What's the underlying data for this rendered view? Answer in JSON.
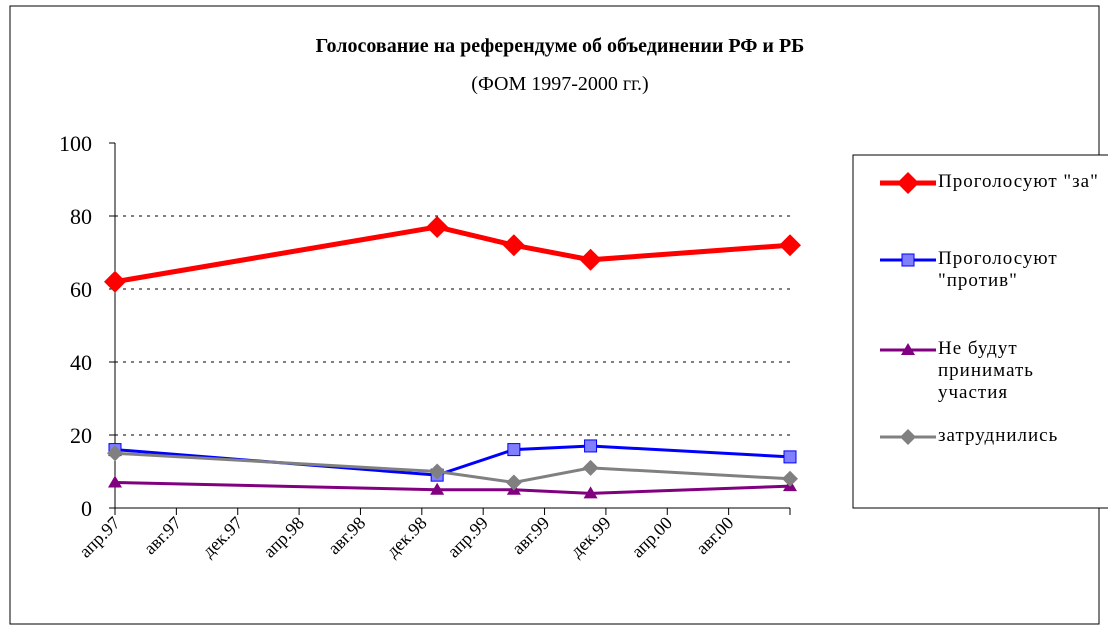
{
  "chart_data": {
    "type": "line",
    "title": "Голосование на референдуме об объединении РФ и РБ",
    "subtitle": "(ФОМ 1997-2000 гг.)",
    "x": [
      "1997-04",
      "1999-01",
      "1999-06",
      "1999-11",
      "2000-12"
    ],
    "xlim": [
      "1997-04",
      "2000-12"
    ],
    "xticks": [
      {
        "value": "1997-04",
        "label": "апр.97"
      },
      {
        "value": "1997-08",
        "label": "авг.97"
      },
      {
        "value": "1997-12",
        "label": "дек.97"
      },
      {
        "value": "1998-04",
        "label": "апр.98"
      },
      {
        "value": "1998-08",
        "label": "авг.98"
      },
      {
        "value": "1998-12",
        "label": "дек.98"
      },
      {
        "value": "1999-04",
        "label": "апр.99"
      },
      {
        "value": "1999-08",
        "label": "авг.99"
      },
      {
        "value": "1999-12",
        "label": "дек.99"
      },
      {
        "value": "2000-04",
        "label": "апр.00"
      },
      {
        "value": "2000-08",
        "label": "авг.00"
      }
    ],
    "ylim": [
      0,
      100
    ],
    "yticks": [
      0,
      20,
      40,
      60,
      80,
      100
    ],
    "grid": true,
    "legend": "right",
    "series": [
      {
        "name": "Проголосуют \"за\"",
        "color": "#ff0000",
        "marker": "diamond",
        "values": [
          62,
          77,
          72,
          68,
          72
        ]
      },
      {
        "name": "Проголосуют \"против\"",
        "color": "#0000ff",
        "marker": "square",
        "values": [
          16,
          9,
          16,
          17,
          14
        ]
      },
      {
        "name": "Не будут принимать участия",
        "color": "#800080",
        "marker": "triangle",
        "values": [
          7,
          5,
          5,
          4,
          6
        ]
      },
      {
        "name": "затруднились",
        "color": "#808080",
        "marker": "diamond",
        "values": [
          15,
          10,
          7,
          11,
          8
        ]
      }
    ]
  }
}
